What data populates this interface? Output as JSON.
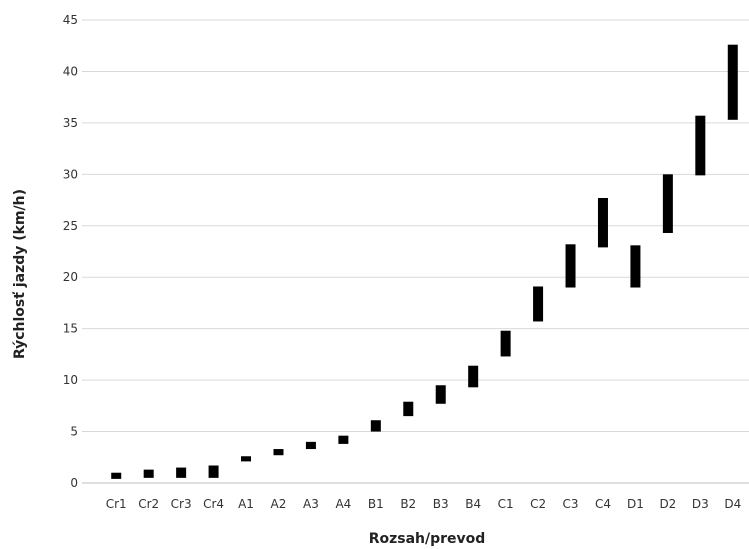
{
  "chart_data": {
    "type": "bar",
    "subtype": "floating-range",
    "title": "",
    "xlabel": "Rozsah/prevod",
    "ylabel": "Rýchlosť jazdy (km/h)",
    "ylim": [
      0,
      45
    ],
    "yticks": [
      0,
      5,
      10,
      15,
      20,
      25,
      30,
      35,
      40,
      45
    ],
    "grid": true,
    "legend": "none",
    "bar_color": "#000000",
    "categories": [
      "Cr1",
      "Cr2",
      "Cr3",
      "Cr4",
      "A1",
      "A2",
      "A3",
      "A4",
      "B1",
      "B2",
      "B3",
      "B4",
      "C1",
      "C2",
      "C3",
      "C4",
      "D1",
      "D2",
      "D3",
      "D4"
    ],
    "ranges": [
      [
        0.4,
        1.0
      ],
      [
        0.5,
        1.3
      ],
      [
        0.5,
        1.5
      ],
      [
        0.5,
        1.7
      ],
      [
        2.1,
        2.6
      ],
      [
        2.7,
        3.3
      ],
      [
        3.3,
        4.0
      ],
      [
        3.8,
        4.6
      ],
      [
        5.0,
        6.1
      ],
      [
        6.5,
        7.9
      ],
      [
        7.7,
        9.5
      ],
      [
        9.3,
        11.4
      ],
      [
        12.3,
        14.8
      ],
      [
        15.7,
        19.1
      ],
      [
        19.0,
        23.2
      ],
      [
        22.9,
        27.7
      ],
      [
        19.0,
        23.1
      ],
      [
        24.3,
        30.0
      ],
      [
        29.9,
        35.7
      ],
      [
        35.3,
        42.6
      ]
    ]
  }
}
